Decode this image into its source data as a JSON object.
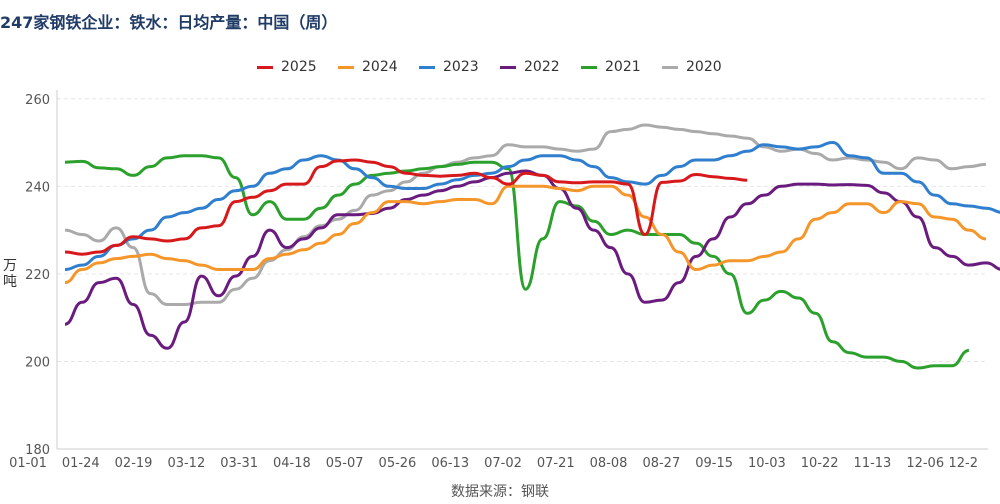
{
  "chart_data": {
    "type": "line",
    "title": "247家钢铁企业：铁水：日均产量：中国（周）",
    "ylabel": "万吨",
    "source": "数据来源：钢联",
    "ylim": [
      180,
      262
    ],
    "yticks": [
      180,
      200,
      220,
      240,
      260
    ],
    "x_labels": [
      "01-01",
      "01-24",
      "02-19",
      "03-12",
      "03-31",
      "04-18",
      "05-07",
      "05-26",
      "06-13",
      "07-02",
      "07-21",
      "08-08",
      "08-27",
      "09-15",
      "10-03",
      "10-22",
      "11-13",
      "12-06",
      "12-2"
    ],
    "grid": true,
    "legend_position": "top-center",
    "series": [
      {
        "name": "2025",
        "color": "#d7191c",
        "values": [
          225,
          224.5,
          225,
          226.5,
          228.5,
          228,
          227.5,
          228,
          230.5,
          231,
          236.5,
          237.5,
          239,
          240.5,
          240.5,
          244.5,
          245.8,
          246,
          245.5,
          244.5,
          243,
          242.5,
          242.3,
          242.5,
          243,
          242,
          240.5,
          243,
          242.5,
          241,
          240.8,
          241,
          241,
          240.5,
          229,
          240.9,
          241.2,
          242.7,
          242.2,
          241.8,
          241.4
        ]
      },
      {
        "name": "2024",
        "color": "#f5962b",
        "values": [
          218,
          221,
          222.5,
          223.5,
          224,
          224.5,
          223.5,
          223,
          222,
          221,
          221,
          221,
          223.5,
          224.5,
          225.5,
          227,
          229,
          231.5,
          234,
          236.5,
          236.5,
          236,
          236.5,
          237,
          237,
          236,
          240,
          240,
          240,
          239.5,
          239,
          240,
          240,
          238,
          233,
          229,
          225,
          221,
          222,
          223,
          223,
          224,
          225,
          228,
          232.5,
          234,
          236,
          236,
          234,
          236.5,
          236,
          233,
          232.5,
          230,
          228
        ]
      },
      {
        "name": "2023",
        "color": "#2f7fce",
        "values": [
          221,
          222,
          224,
          226.5,
          228,
          230,
          233,
          234,
          235,
          237,
          239,
          240,
          243,
          244,
          246,
          247,
          246,
          244,
          242,
          240,
          239.5,
          239.5,
          240.5,
          241.5,
          242.5,
          243,
          244.5,
          246,
          247,
          247,
          246,
          244.5,
          242,
          241,
          240.5,
          242.5,
          244.5,
          246,
          246,
          247,
          248,
          249.5,
          249,
          248.5,
          249,
          250,
          247,
          246.5,
          243,
          243,
          241,
          238,
          236,
          235.5,
          235,
          234,
          228,
          226,
          226.5,
          222,
          221
        ]
      },
      {
        "name": "2022",
        "color": "#6a1b7e",
        "values": [
          208.5,
          213.5,
          218,
          219,
          213,
          206,
          203,
          209,
          219.5,
          215,
          219.5,
          224,
          230,
          226,
          228,
          230.5,
          233.5,
          233.5,
          233.8,
          235,
          237,
          238,
          239,
          240,
          241,
          242,
          243,
          243.5,
          242.5,
          239.5,
          235,
          230,
          226,
          220,
          213.5,
          214,
          218,
          224,
          228,
          233,
          236,
          238,
          240,
          240.5,
          240.5,
          240.3,
          240.4,
          240.2,
          238.5,
          236.5,
          233,
          226,
          224,
          222,
          222.5,
          221,
          222.5,
          222,
          222.5
        ]
      },
      {
        "name": "2021",
        "color": "#2ca02c",
        "values": [
          245.5,
          245.7,
          244.2,
          244,
          242.5,
          244.5,
          246.5,
          247,
          247,
          246.5,
          242,
          233.5,
          236.5,
          232.5,
          232.5,
          235,
          238,
          240.5,
          242.5,
          243,
          243.5,
          244,
          244.5,
          245,
          245.5,
          245.5,
          244,
          216.5,
          228,
          236.5,
          235.5,
          232,
          229,
          230,
          229,
          229,
          229,
          227,
          224,
          220,
          211,
          214,
          216,
          214.5,
          211,
          204.5,
          202,
          201,
          201,
          200,
          198.5,
          199,
          199,
          202.5
        ]
      },
      {
        "name": "2020",
        "color": "#aaaaaa",
        "values": [
          230,
          229,
          227.5,
          230.5,
          226,
          215.5,
          213,
          213,
          213.5,
          213.5,
          216.5,
          219,
          223,
          225.5,
          228.5,
          231,
          232.5,
          234.5,
          238,
          239,
          241,
          243,
          244.5,
          245.5,
          246.5,
          247,
          249.5,
          249,
          249,
          248.5,
          248,
          248.5,
          252.5,
          253,
          254,
          253.5,
          253,
          252.5,
          252,
          251.5,
          251,
          249,
          248,
          248.5,
          247.5,
          246,
          246.5,
          246,
          245.5,
          244,
          246.5,
          246,
          244,
          244.5,
          245
        ]
      }
    ]
  }
}
